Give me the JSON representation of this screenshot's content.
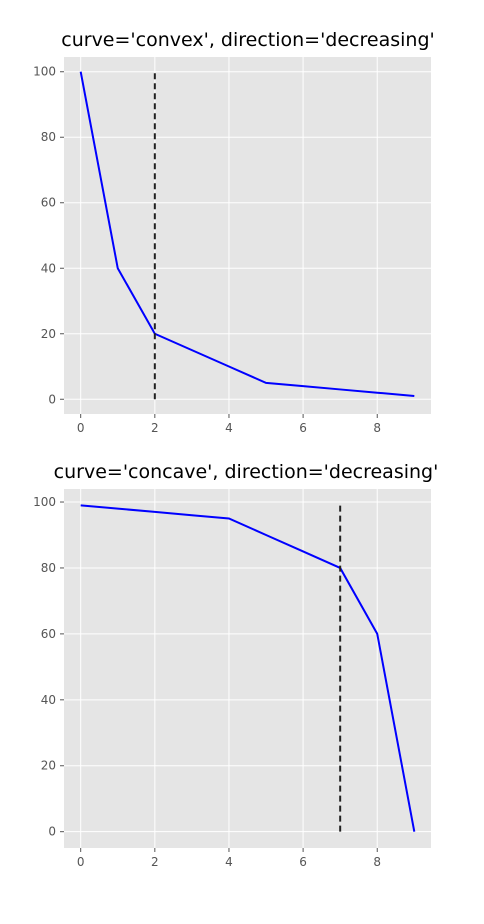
{
  "chart_data": [
    {
      "type": "line",
      "title": "curve='convex', direction='decreasing'",
      "xlabel": "",
      "ylabel": "",
      "x": [
        0,
        1,
        2,
        3,
        4,
        5,
        6,
        7,
        8,
        9
      ],
      "series": [
        {
          "values": [
            100,
            40,
            20,
            15,
            10,
            5,
            4,
            3,
            2,
            1
          ],
          "color": "#0000ff"
        }
      ],
      "knee": {
        "x": 2,
        "y_from": 0,
        "y_to": 100,
        "style": "dashed",
        "color": "#222222"
      },
      "xlim": [
        -0.45,
        9.45
      ],
      "ylim": [
        -4.5,
        104.5
      ],
      "xticks": [
        0,
        2,
        4,
        6,
        8
      ],
      "yticks": [
        0,
        20,
        40,
        60,
        80,
        100
      ],
      "xticklabels": [
        "0",
        "2",
        "4",
        "6",
        "8"
      ],
      "yticklabels": [
        "0",
        "20",
        "40",
        "60",
        "80",
        "100"
      ],
      "grid": true,
      "style": "ggplot"
    },
    {
      "type": "line",
      "title": "curve='concave', direction='decreasing'",
      "xlabel": "",
      "ylabel": "",
      "x": [
        0,
        1,
        2,
        3,
        4,
        5,
        6,
        7,
        8,
        9
      ],
      "series": [
        {
          "values": [
            99,
            98,
            97,
            96,
            95,
            90,
            85,
            80,
            60,
            0
          ],
          "color": "#0000ff"
        }
      ],
      "knee": {
        "x": 7,
        "y_from": 0,
        "y_to": 100,
        "style": "dashed",
        "color": "#222222"
      },
      "xlim": [
        -0.45,
        9.45
      ],
      "ylim": [
        -4.95,
        103.95
      ],
      "xticks": [
        0,
        2,
        4,
        6,
        8
      ],
      "yticks": [
        0,
        20,
        40,
        60,
        80,
        100
      ],
      "xticklabels": [
        "0",
        "2",
        "4",
        "6",
        "8"
      ],
      "yticklabels": [
        "0",
        "20",
        "40",
        "60",
        "80",
        "100"
      ],
      "grid": true,
      "style": "ggplot"
    }
  ]
}
